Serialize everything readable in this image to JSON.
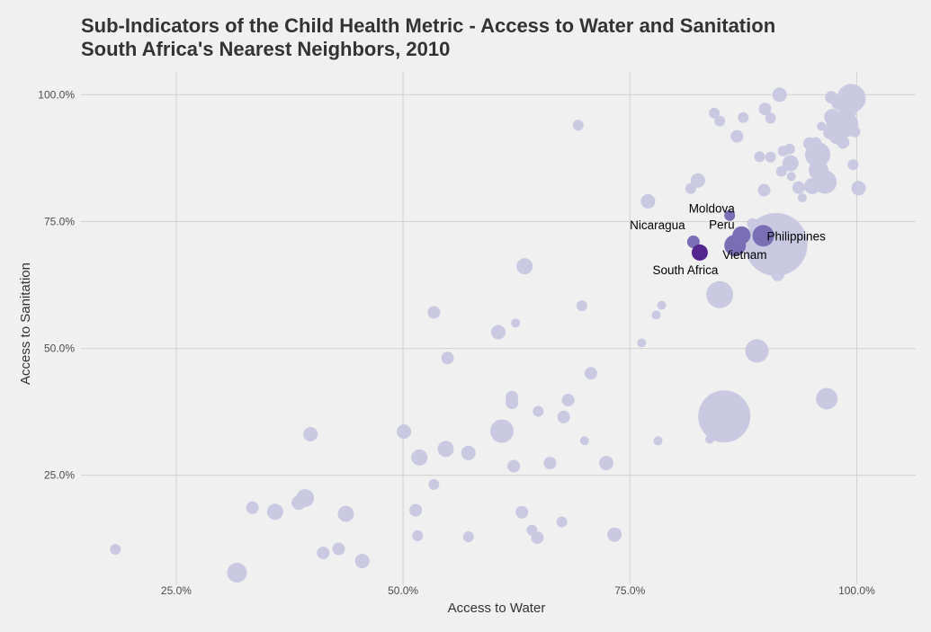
{
  "chart_data": {
    "type": "scatter",
    "title": "Sub-Indicators of the Child Health Metric - Access to Water and Sanitation",
    "subtitle": "South Africa's Nearest Neighbors, 2010",
    "xlabel": "Access to Water",
    "ylabel": "Access to Sanitation",
    "xlim": [
      0.145,
      1.065
    ],
    "ylim": [
      0.035,
      1.045
    ],
    "x_ticks": [
      {
        "value": 0.25,
        "label": "25.0%"
      },
      {
        "value": 0.5,
        "label": "50.0%"
      },
      {
        "value": 0.75,
        "label": "75.0%"
      },
      {
        "value": 1.0,
        "label": "100.0%"
      }
    ],
    "y_ticks": [
      {
        "value": 0.25,
        "label": "25.0%"
      },
      {
        "value": 0.5,
        "label": "50.0%"
      },
      {
        "value": 0.75,
        "label": "75.0%"
      },
      {
        "value": 1.0,
        "label": "100.0%"
      }
    ],
    "grid": true,
    "colors": {
      "background": "#f0f0f0",
      "grid": "#d2d2d2",
      "other": "#cbc9e2",
      "neighbor": "#7a6fb5",
      "focus": "#54278f"
    },
    "points": [
      {
        "x": 0.183,
        "y": 0.104,
        "r": 6
      },
      {
        "x": 0.317,
        "y": 0.058,
        "r": 11
      },
      {
        "x": 0.334,
        "y": 0.186,
        "r": 7
      },
      {
        "x": 0.359,
        "y": 0.178,
        "r": 9
      },
      {
        "x": 0.385,
        "y": 0.196,
        "r": 8
      },
      {
        "x": 0.392,
        "y": 0.205,
        "r": 10
      },
      {
        "x": 0.398,
        "y": 0.331,
        "r": 8
      },
      {
        "x": 0.412,
        "y": 0.097,
        "r": 7
      },
      {
        "x": 0.429,
        "y": 0.105,
        "r": 7
      },
      {
        "x": 0.437,
        "y": 0.174,
        "r": 9
      },
      {
        "x": 0.455,
        "y": 0.081,
        "r": 8
      },
      {
        "x": 0.501,
        "y": 0.336,
        "r": 8
      },
      {
        "x": 0.514,
        "y": 0.181,
        "r": 7
      },
      {
        "x": 0.516,
        "y": 0.131,
        "r": 6
      },
      {
        "x": 0.518,
        "y": 0.285,
        "r": 9
      },
      {
        "x": 0.534,
        "y": 0.232,
        "r": 6
      },
      {
        "x": 0.534,
        "y": 0.571,
        "r": 7
      },
      {
        "x": 0.547,
        "y": 0.302,
        "r": 9
      },
      {
        "x": 0.549,
        "y": 0.481,
        "r": 7
      },
      {
        "x": 0.572,
        "y": 0.294,
        "r": 8
      },
      {
        "x": 0.572,
        "y": 0.129,
        "r": 6
      },
      {
        "x": 0.605,
        "y": 0.532,
        "r": 8
      },
      {
        "x": 0.609,
        "y": 0.337,
        "r": 13
      },
      {
        "x": 0.62,
        "y": 0.404,
        "r": 7
      },
      {
        "x": 0.62,
        "y": 0.393,
        "r": 7
      },
      {
        "x": 0.622,
        "y": 0.268,
        "r": 7
      },
      {
        "x": 0.624,
        "y": 0.55,
        "r": 5
      },
      {
        "x": 0.631,
        "y": 0.177,
        "r": 7
      },
      {
        "x": 0.634,
        "y": 0.662,
        "r": 9
      },
      {
        "x": 0.642,
        "y": 0.142,
        "r": 6
      },
      {
        "x": 0.648,
        "y": 0.127,
        "r": 7
      },
      {
        "x": 0.649,
        "y": 0.376,
        "r": 6
      },
      {
        "x": 0.662,
        "y": 0.274,
        "r": 7
      },
      {
        "x": 0.675,
        "y": 0.158,
        "r": 6
      },
      {
        "x": 0.677,
        "y": 0.365,
        "r": 7
      },
      {
        "x": 0.682,
        "y": 0.398,
        "r": 7
      },
      {
        "x": 0.693,
        "y": 0.94,
        "r": 6
      },
      {
        "x": 0.697,
        "y": 0.584,
        "r": 6
      },
      {
        "x": 0.7,
        "y": 0.318,
        "r": 5
      },
      {
        "x": 0.707,
        "y": 0.451,
        "r": 7
      },
      {
        "x": 0.724,
        "y": 0.274,
        "r": 8
      },
      {
        "x": 0.733,
        "y": 0.133,
        "r": 8
      },
      {
        "x": 0.763,
        "y": 0.511,
        "r": 5
      },
      {
        "x": 0.77,
        "y": 0.79,
        "r": 8
      },
      {
        "x": 0.779,
        "y": 0.566,
        "r": 5
      },
      {
        "x": 0.781,
        "y": 0.318,
        "r": 5
      },
      {
        "x": 0.785,
        "y": 0.585,
        "r": 5
      },
      {
        "x": 0.817,
        "y": 0.815,
        "r": 6
      },
      {
        "x": 0.825,
        "y": 0.831,
        "r": 8
      },
      {
        "x": 0.838,
        "y": 0.321,
        "r": 5
      },
      {
        "x": 0.843,
        "y": 0.964,
        "r": 6
      },
      {
        "x": 0.849,
        "y": 0.948,
        "r": 6
      },
      {
        "x": 0.849,
        "y": 0.606,
        "r": 15
      },
      {
        "x": 0.854,
        "y": 0.366,
        "r": 29
      },
      {
        "x": 0.868,
        "y": 0.918,
        "r": 7
      },
      {
        "x": 0.875,
        "y": 0.955,
        "r": 6
      },
      {
        "x": 0.885,
        "y": 0.746,
        "r": 6
      },
      {
        "x": 0.89,
        "y": 0.495,
        "r": 13
      },
      {
        "x": 0.893,
        "y": 0.878,
        "r": 6
      },
      {
        "x": 0.898,
        "y": 0.812,
        "r": 7
      },
      {
        "x": 0.899,
        "y": 0.972,
        "r": 7
      },
      {
        "x": 0.905,
        "y": 0.877,
        "r": 6
      },
      {
        "x": 0.905,
        "y": 0.954,
        "r": 6
      },
      {
        "x": 0.911,
        "y": 0.705,
        "r": 35
      },
      {
        "x": 0.913,
        "y": 0.645,
        "r": 7
      },
      {
        "x": 0.915,
        "y": 1.0,
        "r": 8
      },
      {
        "x": 0.917,
        "y": 0.849,
        "r": 6
      },
      {
        "x": 0.919,
        "y": 0.889,
        "r": 6
      },
      {
        "x": 0.926,
        "y": 0.893,
        "r": 6
      },
      {
        "x": 0.927,
        "y": 0.865,
        "r": 9
      },
      {
        "x": 0.928,
        "y": 0.839,
        "r": 5
      },
      {
        "x": 0.936,
        "y": 0.817,
        "r": 7
      },
      {
        "x": 0.94,
        "y": 0.797,
        "r": 5
      },
      {
        "x": 0.948,
        "y": 0.904,
        "r": 7
      },
      {
        "x": 0.951,
        "y": 0.82,
        "r": 9
      },
      {
        "x": 0.955,
        "y": 0.906,
        "r": 6
      },
      {
        "x": 0.957,
        "y": 0.882,
        "r": 14
      },
      {
        "x": 0.958,
        "y": 0.851,
        "r": 11
      },
      {
        "x": 0.961,
        "y": 0.938,
        "r": 5
      },
      {
        "x": 0.965,
        "y": 0.828,
        "r": 13
      },
      {
        "x": 0.967,
        "y": 0.401,
        "r": 12
      },
      {
        "x": 0.97,
        "y": 0.925,
        "r": 7
      },
      {
        "x": 0.972,
        "y": 0.995,
        "r": 7
      },
      {
        "x": 0.973,
        "y": 0.956,
        "r": 9
      },
      {
        "x": 0.977,
        "y": 0.938,
        "r": 11
      },
      {
        "x": 0.979,
        "y": 0.92,
        "r": 10
      },
      {
        "x": 0.981,
        "y": 0.985,
        "r": 9
      },
      {
        "x": 0.985,
        "y": 0.906,
        "r": 7
      },
      {
        "x": 0.988,
        "y": 0.941,
        "r": 14
      },
      {
        "x": 0.99,
        "y": 0.968,
        "r": 10
      },
      {
        "x": 0.994,
        "y": 0.993,
        "r": 16
      },
      {
        "x": 0.996,
        "y": 0.862,
        "r": 6
      },
      {
        "x": 0.998,
        "y": 0.927,
        "r": 6
      },
      {
        "x": 1.002,
        "y": 0.816,
        "r": 8
      }
    ],
    "highlighted": [
      {
        "name": "Moldova",
        "x": 0.86,
        "y": 0.762,
        "r": 6,
        "role": "neighbor"
      },
      {
        "name": "Nicaragua",
        "x": 0.82,
        "y": 0.71,
        "r": 7,
        "role": "neighbor"
      },
      {
        "name": "Peru",
        "x": 0.873,
        "y": 0.723,
        "r": 10,
        "role": "neighbor"
      },
      {
        "name": "Philippines",
        "x": 0.897,
        "y": 0.722,
        "r": 12,
        "role": "neighbor"
      },
      {
        "name": "Vietnam",
        "x": 0.866,
        "y": 0.703,
        "r": 12,
        "role": "neighbor"
      },
      {
        "name": "South Africa",
        "x": 0.827,
        "y": 0.689,
        "r": 9,
        "role": "focus"
      }
    ]
  }
}
